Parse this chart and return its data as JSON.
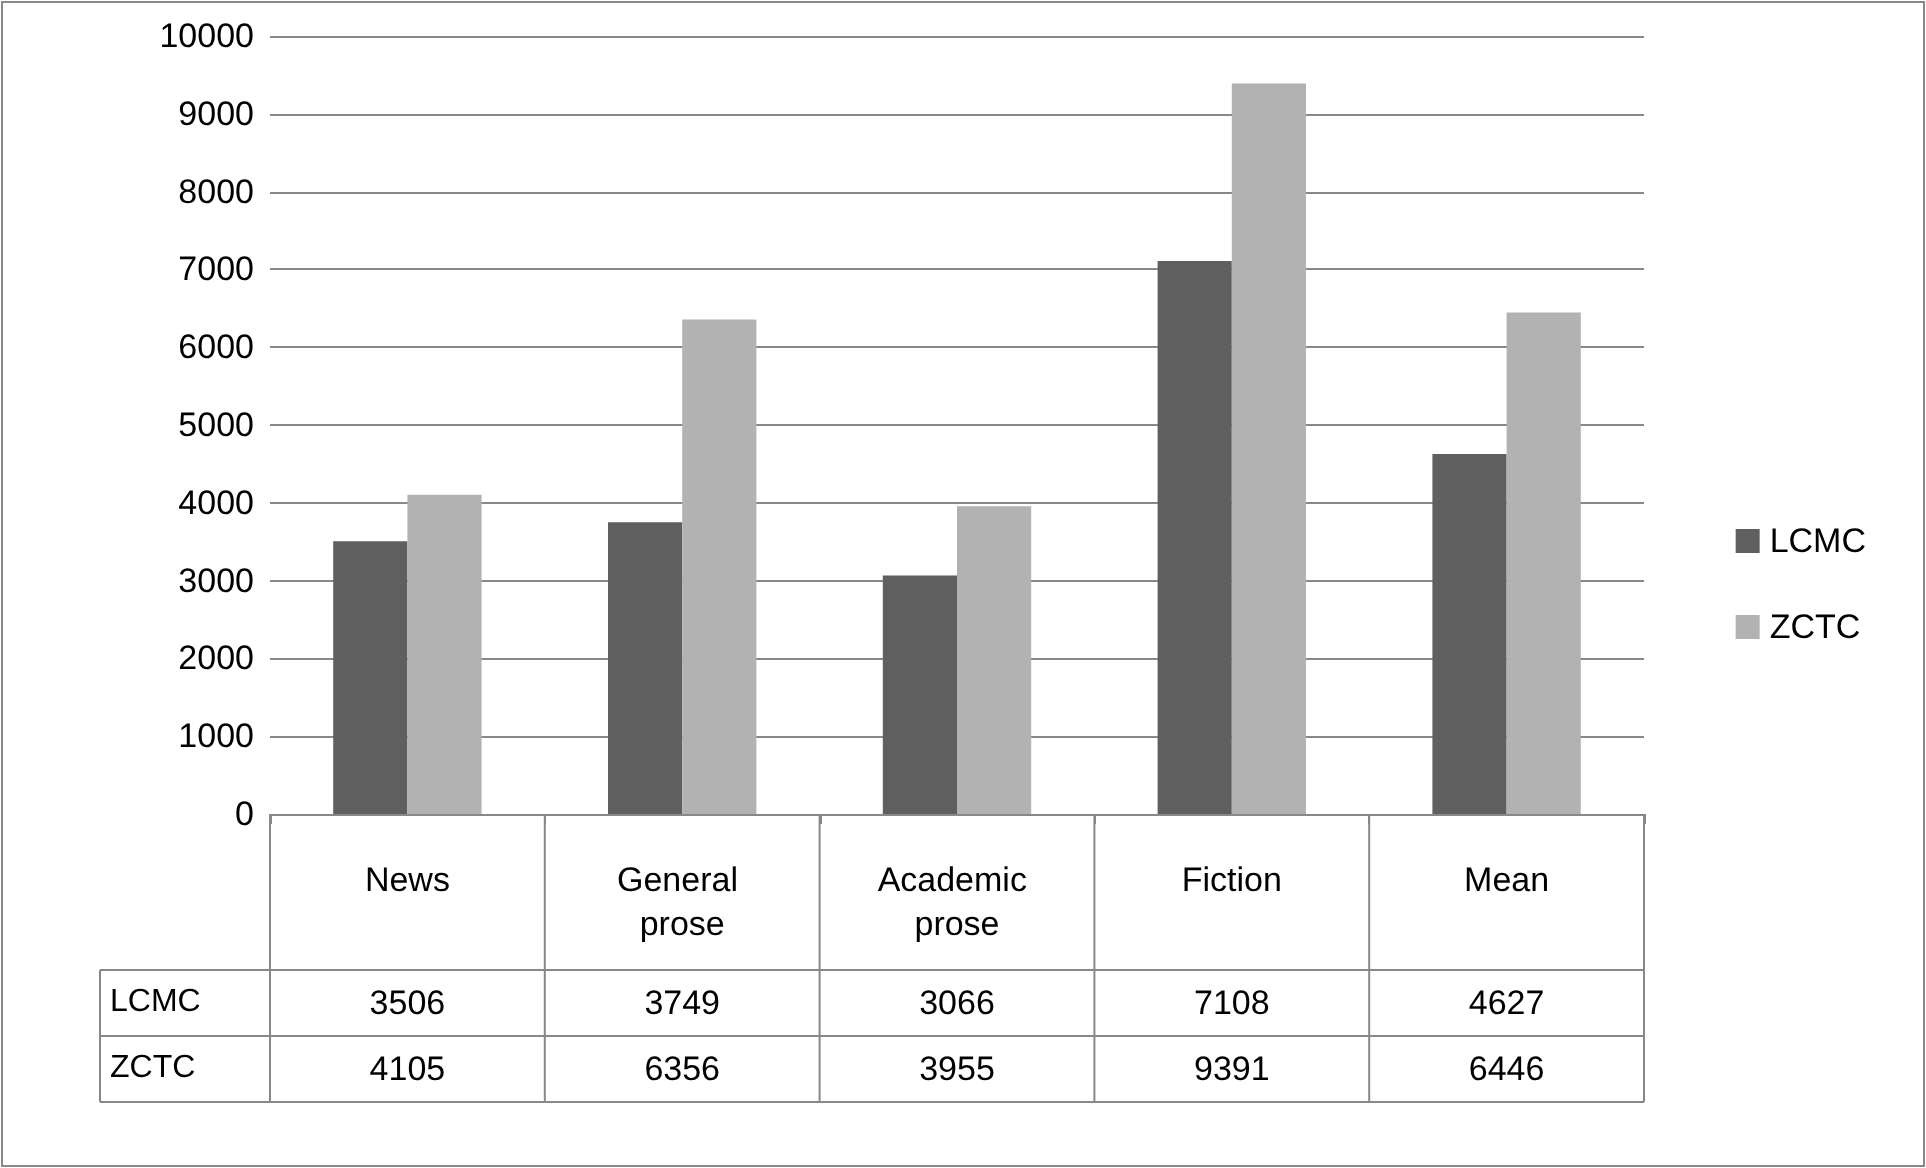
{
  "chart_data": {
    "type": "bar",
    "categories": [
      "News",
      "General prose",
      "Academic prose",
      "Fiction",
      "Mean"
    ],
    "series": [
      {
        "name": "LCMC",
        "color": "#5f5f5f",
        "values": [
          3506,
          3749,
          3066,
          7108,
          4627
        ]
      },
      {
        "name": "ZCTC",
        "color": "#b2b2b2",
        "values": [
          4105,
          6356,
          3955,
          9391,
          6446
        ]
      }
    ],
    "ylim": [
      0,
      10000
    ],
    "yticks": [
      0,
      1000,
      2000,
      3000,
      4000,
      5000,
      6000,
      7000,
      8000,
      9000,
      10000
    ],
    "grid": "y",
    "legend": "right",
    "data_labels": true
  }
}
